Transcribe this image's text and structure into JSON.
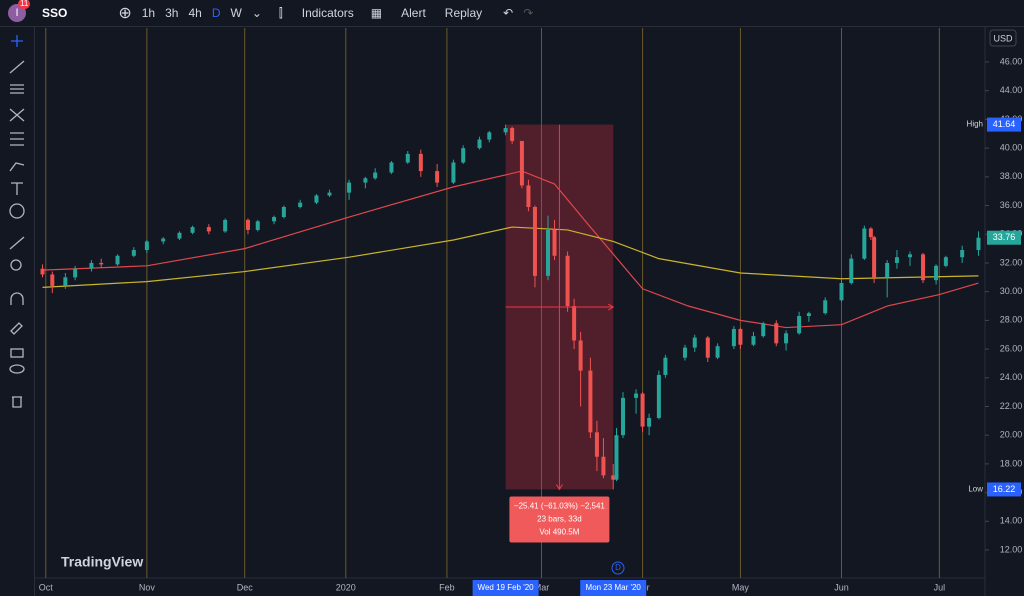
{
  "toolbar": {
    "symbol": "SSO",
    "badge": "11",
    "intervals": [
      "1h",
      "3h",
      "4h",
      "D",
      "W"
    ],
    "buttons": [
      "Indicators",
      "Alert",
      "Replay"
    ]
  },
  "chart_data": {
    "type": "candlestick",
    "currency": "USD",
    "logo": "TradingView",
    "event_marker": "D",
    "up_color": "#26a69a",
    "down_color": "#ef5350",
    "xlim": [
      "2019-09-28",
      "2020-07-15"
    ],
    "ylim": [
      10.05,
      48.37
    ],
    "xticks": [
      {
        "value": "2019-10-01",
        "label": "Oct"
      },
      {
        "value": "2019-11-01",
        "label": "Nov"
      },
      {
        "value": "2019-12-01",
        "label": "Dec"
      },
      {
        "value": "2020-01-01",
        "label": "2020"
      },
      {
        "value": "2020-02-01",
        "label": "Feb"
      },
      {
        "value": "2020-03-01",
        "label": "Mar"
      },
      {
        "value": "2020-04-01",
        "label": "Apr"
      },
      {
        "value": "2020-05-01",
        "label": "May"
      },
      {
        "value": "2020-06-01",
        "label": "Jun"
      },
      {
        "value": "2020-07-01",
        "label": "Jul"
      }
    ],
    "yticks": [
      {
        "value": 12,
        "label": "12.00"
      },
      {
        "value": 14,
        "label": "14.00"
      },
      {
        "value": 16,
        "label": "16.00"
      },
      {
        "value": 18,
        "label": "18.00"
      },
      {
        "value": 20,
        "label": "20.00"
      },
      {
        "value": 22,
        "label": "22.00"
      },
      {
        "value": 24,
        "label": "24.00"
      },
      {
        "value": 26,
        "label": "26.00"
      },
      {
        "value": 28,
        "label": "28.00"
      },
      {
        "value": 30,
        "label": "30.00"
      },
      {
        "value": 32,
        "label": "32.00"
      },
      {
        "value": 34,
        "label": "34.00"
      },
      {
        "value": 36,
        "label": "36.00"
      },
      {
        "value": 38,
        "label": "38.00"
      },
      {
        "value": 40,
        "label": "40.00"
      },
      {
        "value": 42,
        "label": "42.00"
      },
      {
        "value": 44,
        "label": "44.00"
      },
      {
        "value": 46,
        "label": "46.00"
      }
    ],
    "candles": [
      {
        "x": "2019-09-30",
        "open": 31.6,
        "high": 31.9,
        "low": 31.0,
        "close": 31.2
      },
      {
        "x": "2019-10-03",
        "open": 31.2,
        "high": 31.4,
        "low": 29.9,
        "close": 30.4
      },
      {
        "x": "2019-10-07",
        "open": 30.4,
        "high": 31.3,
        "low": 30.2,
        "close": 31.0
      },
      {
        "x": "2019-10-10",
        "open": 31.0,
        "high": 31.8,
        "low": 30.8,
        "close": 31.6
      },
      {
        "x": "2019-10-15",
        "open": 31.6,
        "high": 32.2,
        "low": 31.4,
        "close": 32.0
      },
      {
        "x": "2019-10-18",
        "open": 32.0,
        "high": 32.3,
        "low": 31.7,
        "close": 31.9
      },
      {
        "x": "2019-10-23",
        "open": 31.9,
        "high": 32.6,
        "low": 31.8,
        "close": 32.5
      },
      {
        "x": "2019-10-28",
        "open": 32.5,
        "high": 33.1,
        "low": 32.4,
        "close": 32.9
      },
      {
        "x": "2019-11-01",
        "open": 32.9,
        "high": 33.6,
        "low": 32.7,
        "close": 33.5
      },
      {
        "x": "2019-11-06",
        "open": 33.5,
        "high": 33.8,
        "low": 33.3,
        "close": 33.7
      },
      {
        "x": "2019-11-11",
        "open": 33.7,
        "high": 34.2,
        "low": 33.6,
        "close": 34.1
      },
      {
        "x": "2019-11-15",
        "open": 34.1,
        "high": 34.6,
        "low": 34.0,
        "close": 34.5
      },
      {
        "x": "2019-11-20",
        "open": 34.5,
        "high": 34.7,
        "low": 34.0,
        "close": 34.2
      },
      {
        "x": "2019-11-25",
        "open": 34.2,
        "high": 35.1,
        "low": 34.1,
        "close": 35.0
      },
      {
        "x": "2019-12-02",
        "open": 35.0,
        "high": 35.1,
        "low": 34.0,
        "close": 34.3
      },
      {
        "x": "2019-12-05",
        "open": 34.3,
        "high": 35.0,
        "low": 34.2,
        "close": 34.9
      },
      {
        "x": "2019-12-10",
        "open": 34.9,
        "high": 35.3,
        "low": 34.7,
        "close": 35.2
      },
      {
        "x": "2019-12-13",
        "open": 35.2,
        "high": 36.0,
        "low": 35.1,
        "close": 35.9
      },
      {
        "x": "2019-12-18",
        "open": 35.9,
        "high": 36.4,
        "low": 35.8,
        "close": 36.2
      },
      {
        "x": "2019-12-23",
        "open": 36.2,
        "high": 36.8,
        "low": 36.1,
        "close": 36.7
      },
      {
        "x": "2019-12-27",
        "open": 36.7,
        "high": 37.1,
        "low": 36.6,
        "close": 36.9
      },
      {
        "x": "2020-01-02",
        "open": 36.9,
        "high": 37.8,
        "low": 36.4,
        "close": 37.6
      },
      {
        "x": "2020-01-07",
        "open": 37.6,
        "high": 38.0,
        "low": 37.2,
        "close": 37.9
      },
      {
        "x": "2020-01-10",
        "open": 37.9,
        "high": 38.6,
        "low": 37.8,
        "close": 38.3
      },
      {
        "x": "2020-01-15",
        "open": 38.3,
        "high": 39.1,
        "low": 38.2,
        "close": 39.0
      },
      {
        "x": "2020-01-20",
        "open": 39.0,
        "high": 39.8,
        "low": 38.9,
        "close": 39.6
      },
      {
        "x": "2020-01-24",
        "open": 39.6,
        "high": 39.9,
        "low": 38.0,
        "close": 38.4
      },
      {
        "x": "2020-01-29",
        "open": 38.4,
        "high": 38.9,
        "low": 37.3,
        "close": 37.6
      },
      {
        "x": "2020-02-03",
        "open": 37.6,
        "high": 39.2,
        "low": 37.5,
        "close": 39.0
      },
      {
        "x": "2020-02-06",
        "open": 39.0,
        "high": 40.2,
        "low": 38.9,
        "close": 40.0
      },
      {
        "x": "2020-02-11",
        "open": 40.0,
        "high": 40.8,
        "low": 39.9,
        "close": 40.6
      },
      {
        "x": "2020-02-14",
        "open": 40.6,
        "high": 41.2,
        "low": 40.4,
        "close": 41.1
      },
      {
        "x": "2020-02-19",
        "open": 41.1,
        "high": 41.64,
        "low": 40.9,
        "close": 41.4
      },
      {
        "x": "2020-02-21",
        "open": 41.4,
        "high": 41.5,
        "low": 40.3,
        "close": 40.5
      },
      {
        "x": "2020-02-24",
        "open": 40.5,
        "high": 40.5,
        "low": 37.2,
        "close": 37.4
      },
      {
        "x": "2020-02-26",
        "open": 37.4,
        "high": 37.8,
        "low": 35.6,
        "close": 35.9
      },
      {
        "x": "2020-02-28",
        "open": 35.9,
        "high": 36.0,
        "low": 30.3,
        "close": 31.1
      },
      {
        "x": "2020-03-03",
        "open": 31.1,
        "high": 35.3,
        "low": 30.8,
        "close": 34.3
      },
      {
        "x": "2020-03-05",
        "open": 34.3,
        "high": 35.0,
        "low": 32.2,
        "close": 32.5
      },
      {
        "x": "2020-03-09",
        "open": 32.5,
        "high": 32.8,
        "low": 28.6,
        "close": 29.0
      },
      {
        "x": "2020-03-11",
        "open": 29.0,
        "high": 29.5,
        "low": 26.0,
        "close": 26.6
      },
      {
        "x": "2020-03-13",
        "open": 26.6,
        "high": 27.2,
        "low": 22.0,
        "close": 24.5
      },
      {
        "x": "2020-03-16",
        "open": 24.5,
        "high": 25.4,
        "low": 19.8,
        "close": 20.2
      },
      {
        "x": "2020-03-18",
        "open": 20.2,
        "high": 21.0,
        "low": 17.5,
        "close": 18.5
      },
      {
        "x": "2020-03-20",
        "open": 18.5,
        "high": 19.8,
        "low": 17.0,
        "close": 17.2
      },
      {
        "x": "2020-03-23",
        "open": 17.2,
        "high": 18.0,
        "low": 16.22,
        "close": 16.9
      },
      {
        "x": "2020-03-24",
        "open": 16.9,
        "high": 20.5,
        "low": 16.8,
        "close": 20.0
      },
      {
        "x": "2020-03-26",
        "open": 20.0,
        "high": 23.0,
        "low": 19.8,
        "close": 22.6
      },
      {
        "x": "2020-03-30",
        "open": 22.6,
        "high": 23.2,
        "low": 21.5,
        "close": 22.9
      },
      {
        "x": "2020-04-01",
        "open": 22.9,
        "high": 23.0,
        "low": 20.2,
        "close": 20.6
      },
      {
        "x": "2020-04-03",
        "open": 20.6,
        "high": 21.5,
        "low": 20.0,
        "close": 21.2
      },
      {
        "x": "2020-04-06",
        "open": 21.2,
        "high": 24.5,
        "low": 21.1,
        "close": 24.2
      },
      {
        "x": "2020-04-08",
        "open": 24.2,
        "high": 25.6,
        "low": 24.0,
        "close": 25.4
      },
      {
        "x": "2020-04-14",
        "open": 25.4,
        "high": 26.3,
        "low": 25.2,
        "close": 26.1
      },
      {
        "x": "2020-04-17",
        "open": 26.1,
        "high": 27.0,
        "low": 25.8,
        "close": 26.8
      },
      {
        "x": "2020-04-21",
        "open": 26.8,
        "high": 26.9,
        "low": 25.1,
        "close": 25.4
      },
      {
        "x": "2020-04-24",
        "open": 25.4,
        "high": 26.4,
        "low": 25.3,
        "close": 26.2
      },
      {
        "x": "2020-04-29",
        "open": 26.2,
        "high": 27.6,
        "low": 26.0,
        "close": 27.4
      },
      {
        "x": "2020-05-01",
        "open": 27.4,
        "high": 27.5,
        "low": 26.0,
        "close": 26.3
      },
      {
        "x": "2020-05-05",
        "open": 26.3,
        "high": 27.2,
        "low": 26.2,
        "close": 26.9
      },
      {
        "x": "2020-05-08",
        "open": 26.9,
        "high": 27.9,
        "low": 26.8,
        "close": 27.8
      },
      {
        "x": "2020-05-12",
        "open": 27.8,
        "high": 28.0,
        "low": 26.2,
        "close": 26.4
      },
      {
        "x": "2020-05-15",
        "open": 26.4,
        "high": 27.3,
        "low": 25.9,
        "close": 27.1
      },
      {
        "x": "2020-05-19",
        "open": 27.1,
        "high": 28.6,
        "low": 27.0,
        "close": 28.3
      },
      {
        "x": "2020-05-22",
        "open": 28.3,
        "high": 28.6,
        "low": 27.9,
        "close": 28.5
      },
      {
        "x": "2020-05-27",
        "open": 28.5,
        "high": 29.6,
        "low": 28.4,
        "close": 29.4
      },
      {
        "x": "2020-06-01",
        "open": 29.4,
        "high": 30.8,
        "low": 29.3,
        "close": 30.6
      },
      {
        "x": "2020-06-04",
        "open": 30.6,
        "high": 32.6,
        "low": 30.5,
        "close": 32.3
      },
      {
        "x": "2020-06-08",
        "open": 32.3,
        "high": 34.6,
        "low": 32.2,
        "close": 34.4
      },
      {
        "x": "2020-06-10",
        "open": 34.4,
        "high": 34.5,
        "low": 33.6,
        "close": 33.8
      },
      {
        "x": "2020-06-11",
        "open": 33.8,
        "high": 33.9,
        "low": 30.6,
        "close": 31.0
      },
      {
        "x": "2020-06-15",
        "open": 31.0,
        "high": 32.2,
        "low": 29.6,
        "close": 32.0
      },
      {
        "x": "2020-06-18",
        "open": 32.0,
        "high": 32.9,
        "low": 31.6,
        "close": 32.4
      },
      {
        "x": "2020-06-22",
        "open": 32.4,
        "high": 32.8,
        "low": 31.8,
        "close": 32.6
      },
      {
        "x": "2020-06-26",
        "open": 32.6,
        "high": 32.7,
        "low": 30.6,
        "close": 30.8
      },
      {
        "x": "2020-06-30",
        "open": 30.8,
        "high": 31.9,
        "low": 30.5,
        "close": 31.8
      },
      {
        "x": "2020-07-03",
        "open": 31.8,
        "high": 32.5,
        "low": 31.7,
        "close": 32.4
      },
      {
        "x": "2020-07-08",
        "open": 32.4,
        "high": 33.2,
        "low": 32.0,
        "close": 32.9
      },
      {
        "x": "2020-07-13",
        "open": 32.9,
        "high": 34.2,
        "low": 32.5,
        "close": 33.76
      }
    ],
    "overlays": [
      {
        "color": "#e0474c",
        "x": [
          "2019-09-30",
          "2019-11-01",
          "2019-12-01",
          "2020-01-02",
          "2020-02-03",
          "2020-02-24",
          "2020-03-05",
          "2020-03-16",
          "2020-04-01",
          "2020-04-15",
          "2020-05-01",
          "2020-05-15",
          "2020-06-01",
          "2020-06-15",
          "2020-07-01",
          "2020-07-13"
        ],
        "values": [
          31.5,
          31.8,
          33.0,
          35.2,
          37.3,
          38.4,
          37.5,
          34.5,
          30.2,
          29.0,
          28.0,
          27.5,
          27.7,
          29.0,
          29.8,
          30.6
        ]
      },
      {
        "color": "#c9b52a",
        "x": [
          "2019-09-30",
          "2019-11-01",
          "2019-12-01",
          "2020-01-02",
          "2020-02-03",
          "2020-02-21",
          "2020-03-09",
          "2020-03-23",
          "2020-04-06",
          "2020-05-01",
          "2020-06-01",
          "2020-07-13"
        ],
        "values": [
          30.3,
          30.7,
          31.4,
          32.4,
          33.6,
          34.5,
          34.3,
          33.5,
          32.3,
          31.3,
          30.9,
          31.1
        ]
      }
    ],
    "price_labels": [
      {
        "label": "High",
        "value": 41.64,
        "color": "#2962ff"
      },
      {
        "label": "Low",
        "value": 16.22,
        "color": "#2962ff"
      },
      {
        "value": 33.76,
        "value_label": "33.76",
        "color": "#26a69a"
      }
    ],
    "measure": {
      "from": "2020-02-19",
      "to": "2020-03-23",
      "high": 41.64,
      "low": 16.22,
      "from_label": "Wed 19 Feb '20",
      "to_label": "Mon 23 Mar '20",
      "lines": [
        "−25.41 (−61.03%) −2,541",
        "23 bars, 33d",
        "Vol 490.5M"
      ]
    }
  }
}
